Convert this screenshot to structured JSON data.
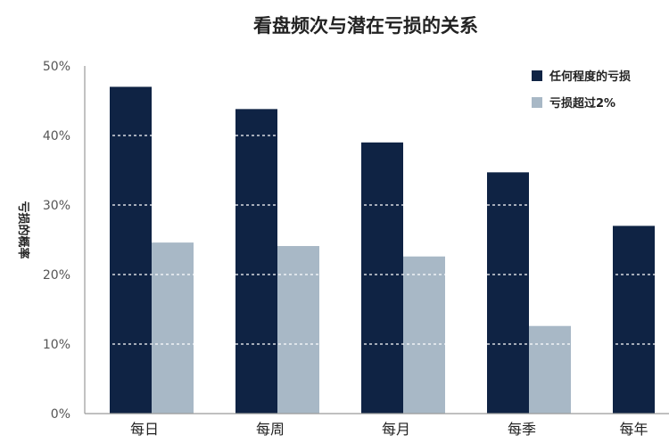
{
  "chart_data": {
    "type": "bar",
    "title": "看盘频次与潜在亏损的关系",
    "ylabel": "亏损的概率",
    "xlabel": "",
    "categories": [
      "每日",
      "每周",
      "每月",
      "每季",
      "每年"
    ],
    "series": [
      {
        "name": "任何程度的亏损",
        "values": [
          47,
          43.8,
          39,
          34.7,
          27
        ],
        "color": "#0f2344"
      },
      {
        "name": "亏损超过2%",
        "values": [
          24.6,
          24.1,
          22.6,
          12.6,
          0
        ],
        "color": "#a8b8c6"
      }
    ],
    "ylim": [
      0,
      50
    ],
    "yticks": [
      "0%",
      "10%",
      "20%",
      "30%",
      "40%",
      "50%"
    ],
    "grid": true,
    "legend_position": "top-right"
  }
}
